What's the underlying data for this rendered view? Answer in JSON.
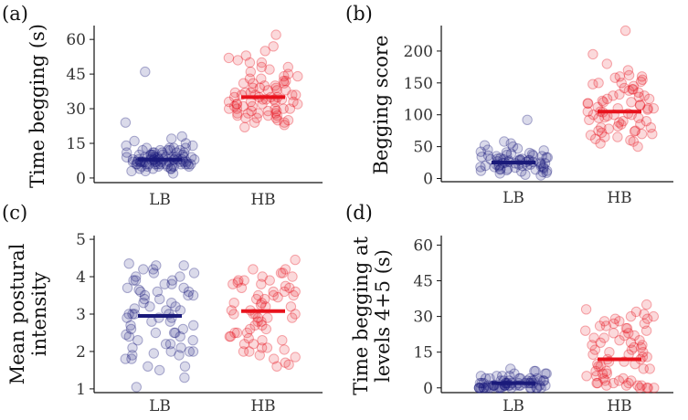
{
  "figure": {
    "width": 753,
    "height": 460
  },
  "chart_data": [
    {
      "panel": "(a)",
      "type": "scatter",
      "title": "",
      "xlabel": "",
      "ylabel": "Time begging (s)",
      "ylabel_lines": [
        "Time begging (s)"
      ],
      "ylim": [
        -2,
        66
      ],
      "yticks": [
        0,
        15,
        30,
        45,
        60
      ],
      "categories": [
        "LB",
        "HB"
      ],
      "means": [
        8,
        35
      ],
      "groups": [
        {
          "name": "LB",
          "color": "#1a1a7a",
          "values": [
            4,
            6,
            7,
            8,
            9,
            5,
            6,
            7,
            8,
            10,
            11,
            6,
            7,
            8,
            9,
            5,
            4,
            12,
            13,
            7,
            8,
            6,
            9,
            10,
            7,
            8,
            5,
            6,
            11,
            9,
            8,
            7,
            6,
            5,
            10,
            12,
            14,
            9,
            8,
            7,
            6,
            15,
            18,
            13,
            11,
            9,
            8,
            7,
            6,
            3,
            2,
            4,
            5,
            7,
            9,
            10,
            8,
            6,
            7,
            11,
            12,
            16,
            17,
            24,
            46,
            9,
            8,
            7,
            6,
            5,
            10,
            11,
            12,
            13,
            9,
            8,
            7,
            6,
            4,
            3,
            8,
            9,
            10,
            7,
            6,
            5,
            14,
            13,
            12,
            11
          ]
        },
        {
          "name": "HB",
          "color": "#e8121c",
          "values": [
            24,
            26,
            28,
            30,
            32,
            34,
            36,
            38,
            40,
            25,
            27,
            29,
            31,
            33,
            35,
            37,
            39,
            41,
            43,
            45,
            22,
            23,
            26,
            28,
            30,
            33,
            35,
            38,
            42,
            44,
            47,
            48,
            50,
            52,
            53,
            55,
            57,
            62,
            30,
            32,
            34,
            36,
            28,
            27,
            29,
            31,
            33,
            35,
            37,
            39,
            41,
            24,
            26,
            29,
            32,
            34,
            36,
            38,
            40,
            42,
            44,
            46,
            48,
            50,
            51,
            30,
            31,
            33,
            35,
            36,
            37,
            28,
            30,
            32,
            34,
            25,
            27,
            39,
            41,
            43
          ]
        }
      ]
    },
    {
      "panel": "(b)",
      "type": "scatter",
      "title": "",
      "xlabel": "",
      "ylabel": "Begging score",
      "ylabel_lines": [
        "Begging score"
      ],
      "ylim": [
        -5,
        240
      ],
      "yticks": [
        0,
        50,
        100,
        150,
        200
      ],
      "categories": [
        "LB",
        "HB"
      ],
      "means": [
        25,
        105
      ],
      "groups": [
        {
          "name": "LB",
          "color": "#1a1a7a",
          "values": [
            10,
            15,
            20,
            25,
            30,
            12,
            18,
            22,
            28,
            33,
            35,
            40,
            8,
            14,
            19,
            24,
            29,
            17,
            21,
            26,
            31,
            36,
            38,
            42,
            45,
            50,
            55,
            58,
            92,
            20,
            22,
            24,
            26,
            28,
            30,
            32,
            16,
            18,
            11,
            13,
            23,
            27,
            34,
            37,
            41,
            44,
            9,
            12,
            15,
            25,
            30,
            19,
            21,
            24,
            28,
            33,
            36,
            39,
            6,
            5,
            14,
            26,
            29,
            31,
            47,
            52,
            35,
            22,
            18
          ]
        },
        {
          "name": "HB",
          "color": "#e8121c",
          "values": [
            60,
            65,
            70,
            75,
            80,
            85,
            90,
            95,
            100,
            105,
            110,
            115,
            120,
            125,
            130,
            135,
            140,
            145,
            150,
            155,
            160,
            50,
            55,
            62,
            68,
            72,
            78,
            82,
            88,
            92,
            98,
            102,
            108,
            112,
            118,
            122,
            128,
            132,
            138,
            142,
            148,
            152,
            158,
            162,
            170,
            180,
            195,
            232,
            90,
            95,
            100,
            105,
            110,
            115,
            85,
            80,
            75,
            120,
            125,
            130,
            65,
            70,
            100,
            110,
            140,
            150,
            160,
            58,
            74,
            96,
            104,
            118
          ]
        }
      ]
    },
    {
      "panel": "(c)",
      "type": "scatter",
      "title": "",
      "xlabel": "",
      "ylabel": "Mean postural intensity",
      "ylabel_lines": [
        "Mean postural",
        "intensity"
      ],
      "ylim": [
        0.9,
        5.1
      ],
      "yticks": [
        1,
        2,
        3,
        4,
        5
      ],
      "categories": [
        "LB",
        "HB"
      ],
      "means": [
        2.95,
        3.08
      ],
      "groups": [
        {
          "name": "LB",
          "color": "#1a1a7a",
          "values": [
            1.05,
            1.3,
            1.5,
            1.6,
            1.8,
            1.9,
            2.0,
            2.1,
            2.2,
            2.3,
            2.4,
            2.5,
            2.6,
            2.7,
            2.8,
            2.9,
            3.0,
            3.1,
            3.2,
            3.3,
            3.4,
            3.5,
            3.6,
            3.7,
            3.8,
            3.9,
            4.0,
            4.1,
            4.2,
            4.3,
            4.35,
            2.0,
            2.5,
            3.0,
            3.5,
            4.0,
            1.9,
            2.8,
            3.6,
            3.2,
            2.4,
            2.9,
            3.7,
            4.1,
            1.6,
            2.2,
            3.3,
            3.9,
            2.6,
            3.1,
            3.8,
            2.0,
            2.7,
            3.4,
            4.2,
            1.8,
            2.3,
            3.0,
            3.5,
            4.3,
            2.1,
            2.9,
            3.6,
            3.0,
            2.5,
            3.9,
            1.95,
            2.45,
            3.15,
            3.65
          ]
        },
        {
          "name": "HB",
          "color": "#e8121c",
          "values": [
            1.6,
            1.7,
            1.8,
            2.0,
            2.1,
            2.2,
            2.3,
            2.4,
            2.5,
            2.6,
            2.7,
            2.8,
            2.9,
            3.0,
            3.1,
            3.2,
            3.3,
            3.4,
            3.5,
            3.6,
            3.7,
            3.8,
            3.9,
            4.0,
            4.1,
            4.2,
            4.45,
            2.0,
            2.5,
            3.0,
            3.5,
            4.0,
            1.9,
            2.8,
            3.6,
            3.2,
            2.4,
            2.9,
            3.7,
            4.1,
            1.65,
            2.2,
            3.3,
            3.9,
            2.6,
            3.1,
            3.8,
            2.05,
            2.7,
            3.4,
            4.2,
            1.85,
            2.3,
            3.0,
            3.5,
            3.75,
            2.1,
            2.9,
            3.6,
            3.0,
            2.5,
            3.9,
            3.45,
            2.35,
            3.25,
            3.85
          ]
        }
      ]
    },
    {
      "panel": "(d)",
      "type": "scatter",
      "title": "",
      "xlabel": "",
      "ylabel": "Time begging at levels 4+5 (s)",
      "ylabel_lines": [
        "Time begging at",
        "levels 4+5 (s)"
      ],
      "ylim": [
        -2,
        64
      ],
      "yticks": [
        0,
        15,
        30,
        45,
        60
      ],
      "categories": [
        "LB",
        "HB"
      ],
      "means": [
        2,
        12
      ],
      "groups": [
        {
          "name": "LB",
          "color": "#1a1a7a",
          "values": [
            0,
            0,
            0,
            0,
            0,
            0,
            0,
            0,
            0,
            0,
            1,
            1,
            1,
            1,
            1,
            1,
            2,
            2,
            2,
            2,
            2,
            3,
            3,
            3,
            3,
            4,
            4,
            4,
            5,
            5,
            5,
            6,
            6,
            7,
            7,
            8,
            0,
            1,
            2,
            3,
            4,
            0,
            1,
            2,
            0,
            1,
            0,
            2,
            3,
            1,
            0,
            4,
            2,
            1,
            0,
            3,
            5,
            2,
            1,
            0,
            6,
            4,
            3,
            2,
            1,
            0,
            2,
            1,
            3,
            0
          ]
        },
        {
          "name": "HB",
          "color": "#e8121c",
          "values": [
            0,
            0,
            1,
            1,
            2,
            2,
            3,
            4,
            5,
            6,
            7,
            8,
            9,
            10,
            11,
            12,
            13,
            14,
            15,
            16,
            17,
            18,
            19,
            20,
            21,
            22,
            23,
            24,
            25,
            26,
            27,
            28,
            29,
            30,
            31,
            32,
            33,
            35,
            0,
            1,
            3,
            5,
            7,
            9,
            11,
            13,
            15,
            17,
            19,
            21,
            23,
            25,
            27,
            29,
            2,
            4,
            6,
            8,
            10,
            12,
            14,
            16,
            18,
            20,
            22,
            24,
            26,
            28,
            30,
            0,
            1,
            2,
            3
          ]
        }
      ]
    }
  ]
}
